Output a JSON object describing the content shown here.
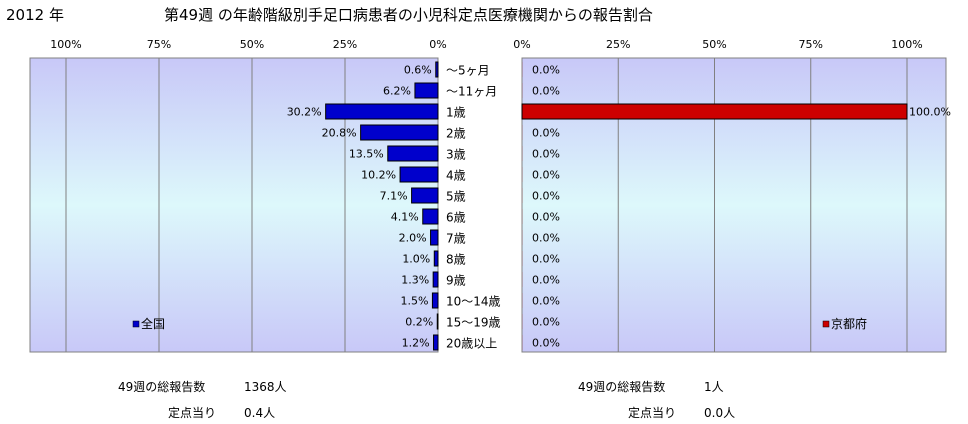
{
  "header": {
    "year": "2012 年",
    "title": "第49週 の年齢階級別手足口病患者の小児科定点医療機関からの報告割合"
  },
  "chart_data": {
    "type": "bar",
    "orientation": "horizontal",
    "categories": [
      "～5ヶ月",
      "～11ヶ月",
      "1歳",
      "2歳",
      "3歳",
      "4歳",
      "5歳",
      "6歳",
      "7歳",
      "8歳",
      "9歳",
      "10～14歳",
      "15～19歳",
      "20歳以上"
    ],
    "xlim": [
      0,
      100
    ],
    "x_ticks": [
      "0%",
      "25%",
      "50%",
      "75%",
      "100%"
    ],
    "left_ticks": [
      "100%",
      "75%",
      "50%",
      "25%",
      "0%"
    ],
    "grid": true,
    "series": [
      {
        "name": "全国",
        "side": "left",
        "color": "#0000cc",
        "values": [
          0.6,
          6.2,
          30.2,
          20.8,
          13.5,
          10.2,
          7.1,
          4.1,
          2.0,
          1.0,
          1.3,
          1.5,
          0.2,
          1.2
        ],
        "labels": [
          "0.6%",
          "6.2%",
          "30.2%",
          "20.8%",
          "13.5%",
          "10.2%",
          "7.1%",
          "4.1%",
          "2.0%",
          "1.0%",
          "1.3%",
          "1.5%",
          "0.2%",
          "1.2%"
        ],
        "legend_position": "bottom-left"
      },
      {
        "name": "京都府",
        "side": "right",
        "color": "#cc0000",
        "values": [
          0,
          0,
          100,
          0,
          0,
          0,
          0,
          0,
          0,
          0,
          0,
          0,
          0,
          0
        ],
        "labels": [
          "0.0%",
          "0.0%",
          "100.0%",
          "0.0%",
          "0.0%",
          "0.0%",
          "0.0%",
          "0.0%",
          "0.0%",
          "0.0%",
          "0.0%",
          "0.0%",
          "0.0%",
          "0.0%"
        ],
        "legend_position": "bottom-right"
      }
    ]
  },
  "stats": {
    "left": {
      "reports_label": "49週の総報告数",
      "reports_value": "1368人",
      "per_site_label": "定点当り",
      "per_site_value": "0.4人"
    },
    "right": {
      "reports_label": "49週の総報告数",
      "reports_value": "1人",
      "per_site_label": "定点当り",
      "per_site_value": "0.0人"
    }
  },
  "colors": {
    "plot_top": "#c8c8f8",
    "plot_mid": "#ddf8fb",
    "plot_bottom": "#c8c8f8"
  }
}
